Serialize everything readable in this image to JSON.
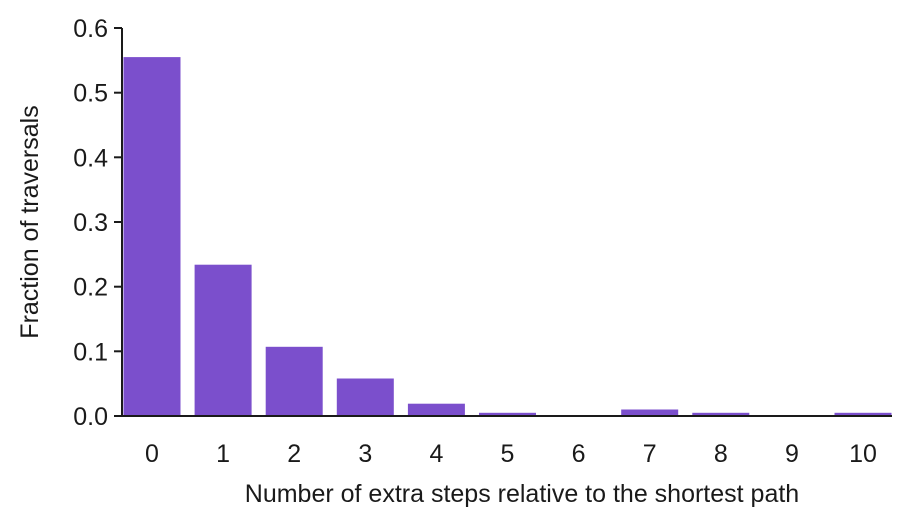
{
  "chart_data": {
    "type": "bar",
    "categories": [
      "0",
      "1",
      "2",
      "3",
      "4",
      "5",
      "6",
      "7",
      "8",
      "9",
      "10"
    ],
    "values": [
      0.555,
      0.234,
      0.107,
      0.058,
      0.019,
      0.005,
      0.0,
      0.01,
      0.005,
      0.0,
      0.005
    ],
    "title": "",
    "xlabel": "Number of extra steps relative to the shortest path",
    "ylabel": "Fraction of traversals",
    "ylim": [
      0,
      0.6
    ],
    "yticks": [
      "0.0",
      "0.1",
      "0.2",
      "0.3",
      "0.4",
      "0.5",
      "0.6"
    ],
    "grid": false,
    "bar_color": "#7b4fcc"
  }
}
